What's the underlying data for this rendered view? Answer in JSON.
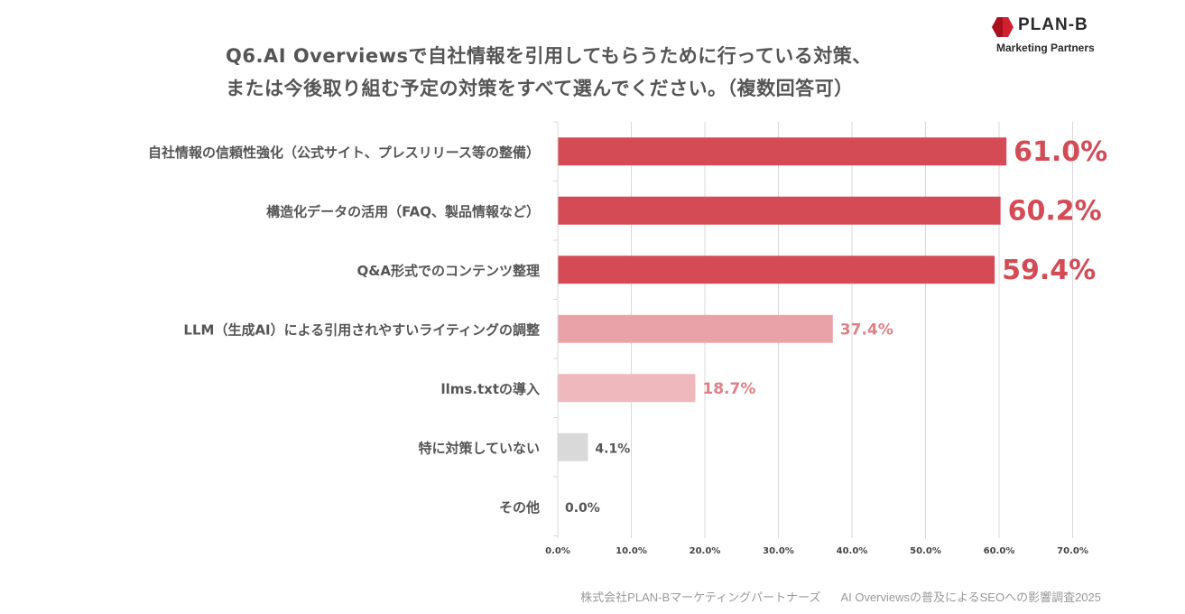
{
  "title_lines": [
    "Q6.AI Overviewsで自社情報を引用してもらうために行っている対策、",
    "または今後取り組む予定の対策をすべて選んでください。（複数回答可）"
  ],
  "logo": {
    "name": "PLAN-B",
    "sub": "Marketing Partners"
  },
  "footer": {
    "company": "株式会社PLAN-Bマーケティングパートナーズ",
    "survey": "AI Overviewsの普及によるSEOへの影響調査2025"
  },
  "colors": {
    "strong_bar": "#d44b55",
    "mid_bar": "#e9a3a8",
    "light_bar": "#eeb8bc",
    "gray_bar": "#d9d9d9",
    "grid": "#d9d9d9",
    "strong_label": "#d44b55",
    "mid_label": "#e07f87",
    "neutral_label": "#555555"
  },
  "chart_data": {
    "type": "bar",
    "orientation": "horizontal",
    "categories": [
      "自社情報の信頼性強化（公式サイト、プレスリリース等の整備）",
      "構造化データの活用（FAQ、製品情報など）",
      "Q&A形式でのコンテンツ整理",
      "LLM（生成AI）による引用されやすいライティングの調整",
      "llms.txtの導入",
      "特に対策していない",
      "その他"
    ],
    "values": [
      61.0,
      60.2,
      59.4,
      37.4,
      18.7,
      4.1,
      0.0
    ],
    "value_labels": [
      "61.0%",
      "60.2%",
      "59.4%",
      "37.4%",
      "18.7%",
      "4.1%",
      "0.0%"
    ],
    "bar_color_keys": [
      "strong_bar",
      "strong_bar",
      "strong_bar",
      "mid_bar",
      "light_bar",
      "gray_bar",
      "gray_bar"
    ],
    "label_styles": [
      "large",
      "large",
      "large",
      "mid",
      "mid",
      "small",
      "small"
    ],
    "xlim": [
      0,
      70
    ],
    "xticks": [
      0,
      10,
      20,
      30,
      40,
      50,
      60,
      70
    ],
    "xtick_labels": [
      "0.0%",
      "10.0%",
      "20.0%",
      "30.0%",
      "40.0%",
      "50.0%",
      "60.0%",
      "70.0%"
    ],
    "grid": true
  }
}
